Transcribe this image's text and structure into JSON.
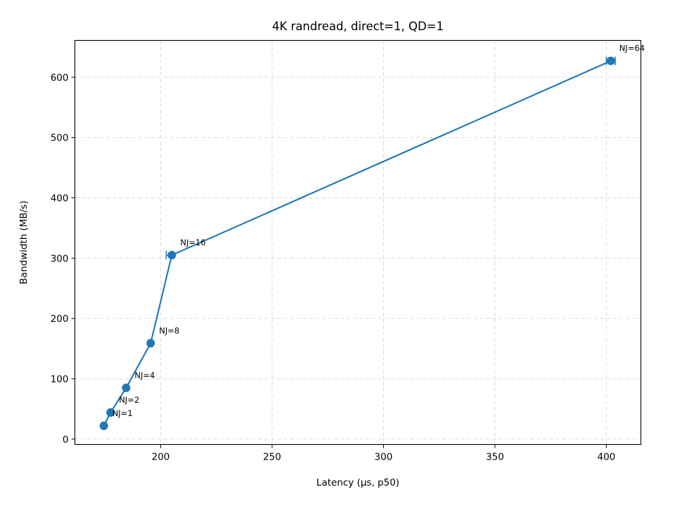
{
  "chart_data": {
    "type": "line",
    "title": "4K randread, direct=1, QD=1",
    "xlabel": "Latency (µs, p50)",
    "ylabel": "Bandwidth (MB/s)",
    "xlim": [
      161.5,
      415.5
    ],
    "ylim": [
      -9,
      661
    ],
    "xticks": [
      200,
      250,
      300,
      350,
      400
    ],
    "yticks": [
      0,
      100,
      200,
      300,
      400,
      500,
      600
    ],
    "grid": true,
    "series": [
      {
        "color": "#1f77b4",
        "marker": "circle",
        "x": [
          174.5,
          177.5,
          184.5,
          195.5,
          205,
          402
        ],
        "y": [
          22,
          44,
          85,
          159,
          305,
          627
        ],
        "labels": [
          "NJ=1",
          "NJ=2",
          "NJ=4",
          "NJ=8",
          "NJ=16",
          "NJ=64"
        ],
        "xerr_low": [
          0.5,
          0.5,
          0.5,
          0.5,
          2.5,
          2
        ],
        "xerr_high": [
          0.5,
          0.5,
          0.5,
          0.5,
          0.5,
          2
        ]
      }
    ]
  }
}
